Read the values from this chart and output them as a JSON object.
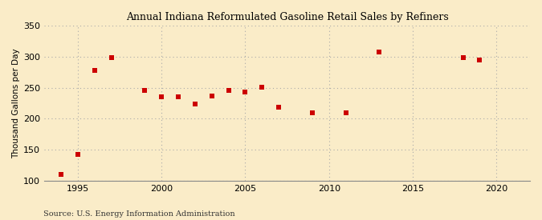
{
  "title": "Annual Indiana Reformulated Gasoline Retail Sales by Refiners",
  "ylabel": "Thousand Gallons per Day",
  "source": "Source: U.S. Energy Information Administration",
  "background_color": "#faecc8",
  "plot_bg_color": "#faecc8",
  "marker_color": "#cc0000",
  "marker": "s",
  "marker_size": 4,
  "xlim": [
    1993,
    2022
  ],
  "ylim": [
    100,
    350
  ],
  "yticks": [
    100,
    150,
    200,
    250,
    300,
    350
  ],
  "xticks": [
    1995,
    2000,
    2005,
    2010,
    2015,
    2020
  ],
  "years": [
    1994,
    1995,
    1996,
    1997,
    1999,
    2000,
    2001,
    2002,
    2003,
    2004,
    2005,
    2006,
    2007,
    2009,
    2011,
    2013,
    2018,
    2019
  ],
  "values": [
    110,
    142,
    278,
    299,
    246,
    235,
    235,
    224,
    236,
    245,
    243,
    251,
    219,
    209,
    209,
    307,
    298,
    295
  ]
}
